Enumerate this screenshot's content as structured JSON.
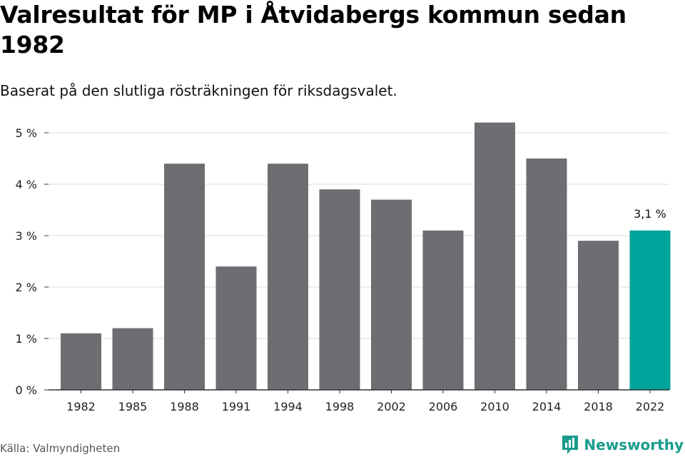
{
  "title": "Valresultat för MP i Åtvidabergs kommun sedan 1982",
  "subtitle": "Baserat på den slutliga rösträkningen för riksdagsvalet.",
  "source": "Källa: Valmyndigheten",
  "brand": {
    "name": "Newsworthy",
    "icon": "newsworthy-logo-icon"
  },
  "colors": {
    "bar": "#6e6d72",
    "highlight": "#00a399",
    "grid": "#dcdcdc",
    "axis": "#333333",
    "brand": "#1a9c8c"
  },
  "chart_data": {
    "type": "bar",
    "title": "Valresultat för MP i Åtvidabergs kommun sedan 1982",
    "xlabel": "",
    "ylabel": "",
    "categories": [
      "1982",
      "1985",
      "1988",
      "1991",
      "1994",
      "1998",
      "2002",
      "2006",
      "2010",
      "2014",
      "2018",
      "2022"
    ],
    "values": [
      1.1,
      1.2,
      4.4,
      2.4,
      4.4,
      3.9,
      3.7,
      3.1,
      5.2,
      4.5,
      2.9,
      3.1
    ],
    "ylim": [
      0,
      5.5
    ],
    "yticks": [
      0,
      1,
      2,
      3,
      4,
      5
    ],
    "ytick_labels": [
      "0 %",
      "1 %",
      "2 %",
      "3 %",
      "4 %",
      "5 %"
    ],
    "highlight_index": 11,
    "data_labels": [
      {
        "index": 11,
        "text": "3,1 %"
      }
    ],
    "grid": true
  }
}
